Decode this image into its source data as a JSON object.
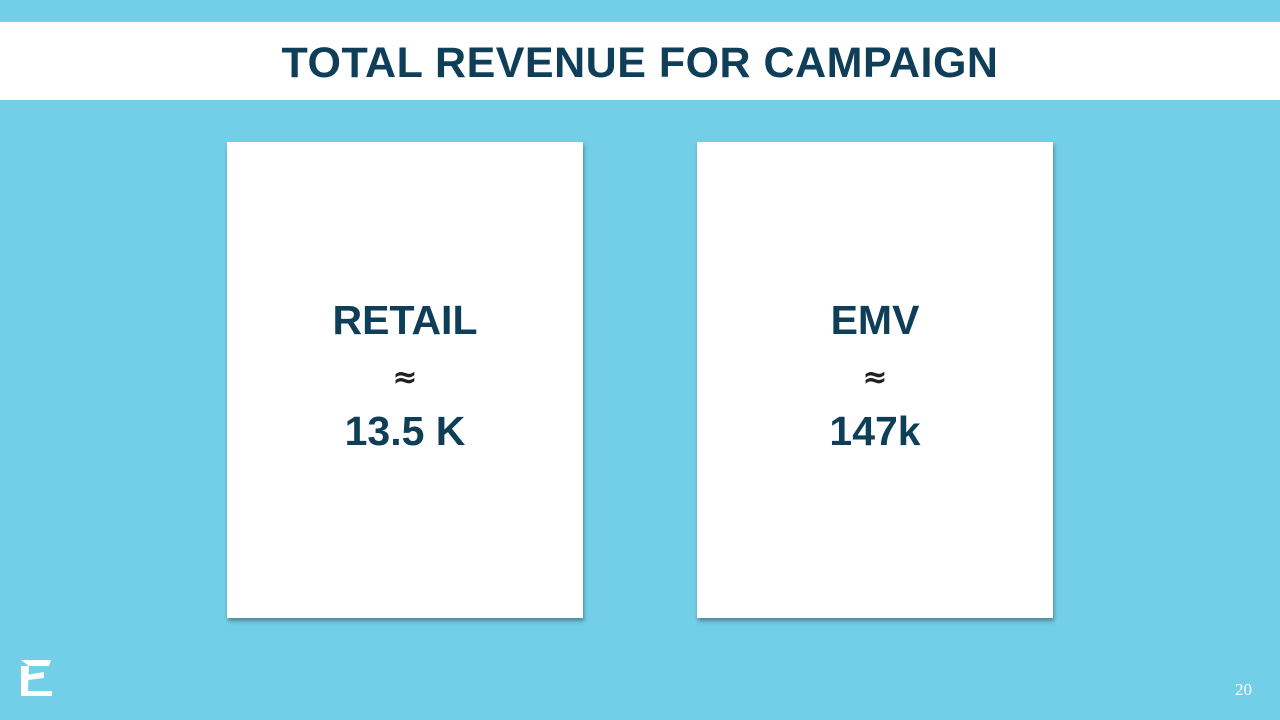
{
  "slide": {
    "title": "TOTAL REVENUE FOR CAMPAIGN",
    "page_number": "20",
    "logo_icon": "e-logo-icon"
  },
  "cards": [
    {
      "label": "RETAIL",
      "symbol": "≈",
      "value": "13.5 K"
    },
    {
      "label": "EMV",
      "symbol": "≈",
      "value": "147k"
    }
  ],
  "colors": {
    "background": "#72cfe7",
    "title_text": "#0e3e58",
    "card_background": "#ffffff",
    "title_bar": "#ffffff"
  }
}
